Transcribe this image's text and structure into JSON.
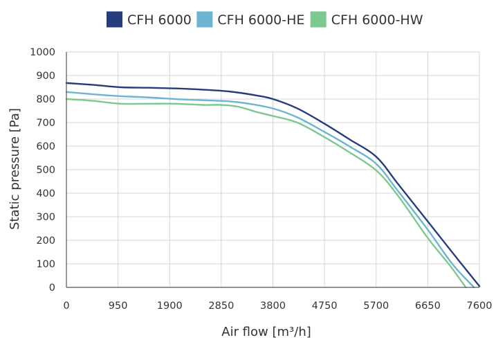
{
  "chart_data": {
    "type": "line",
    "title": "",
    "xlabel": "Air flow [m³/h]",
    "ylabel": "Static pressure [Pa]",
    "xlim": [
      0,
      7600
    ],
    "ylim": [
      0,
      1000
    ],
    "x_ticks": [
      "0",
      "950",
      "1900",
      "2850",
      "3800",
      "4750",
      "5700",
      "6650",
      "7600"
    ],
    "y_ticks": [
      "0",
      "100",
      "200",
      "300",
      "400",
      "500",
      "600",
      "700",
      "800",
      "900",
      "1000"
    ],
    "grid": true,
    "legend_position": "top",
    "series": [
      {
        "name": "CFH 6000",
        "color": "#263c7d",
        "x": [
          0,
          500,
          1000,
          1500,
          2000,
          2500,
          3000,
          3500,
          3800,
          4250,
          4750,
          5200,
          5700,
          6100,
          6650,
          7200,
          7600
        ],
        "y": [
          868,
          860,
          850,
          848,
          845,
          840,
          832,
          815,
          800,
          760,
          695,
          630,
          555,
          440,
          280,
          120,
          5
        ]
      },
      {
        "name": "CFH 6000-HE",
        "color": "#6cb4d0",
        "x": [
          0,
          500,
          1000,
          1500,
          2000,
          2500,
          3000,
          3300,
          3800,
          4250,
          4750,
          5200,
          5700,
          6100,
          6650,
          7100,
          7500
        ],
        "y": [
          830,
          820,
          812,
          807,
          800,
          795,
          790,
          782,
          760,
          722,
          660,
          600,
          525,
          410,
          245,
          100,
          0
        ]
      },
      {
        "name": "CFH 6000-HW",
        "color": "#7bc98f",
        "x": [
          0,
          500,
          1000,
          1500,
          2000,
          2500,
          2850,
          3150,
          3500,
          3800,
          4250,
          4750,
          5200,
          5700,
          6100,
          6650,
          7050,
          7350
        ],
        "y": [
          800,
          792,
          780,
          780,
          780,
          775,
          775,
          768,
          745,
          728,
          700,
          638,
          575,
          497,
          390,
          210,
          95,
          0
        ]
      }
    ]
  }
}
